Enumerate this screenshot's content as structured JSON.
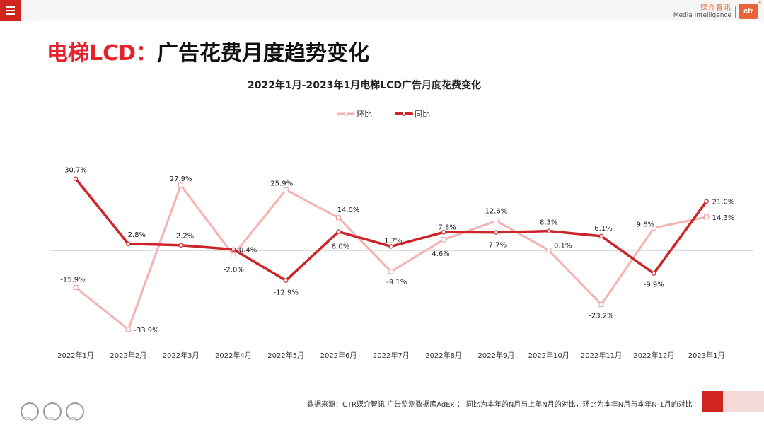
{
  "header": {
    "brand_cn": "媒介智讯",
    "brand_en": "Media Intelligence",
    "brand_logo": "ctr",
    "brand_color": "#e8623a",
    "accent_color": "#d0251f"
  },
  "page": {
    "title_accent": "电梯LCD：",
    "title_main": "广告花费月度趋势变化"
  },
  "footer": {
    "note": "数据来源：CTR媒介智讯 广告监测数据库AdEx ； 同比为本年的N月与上年N月的对比，环比为本年N月与本年N-1月的对比",
    "badge_text": "SGS"
  },
  "chart_data": {
    "type": "line",
    "title": "2022年1月-2023年1月电梯LCD广告月度花费变化",
    "categories": [
      "2022年1月",
      "2022年2月",
      "2022年3月",
      "2022年4月",
      "2022年5月",
      "2022年6月",
      "2022年7月",
      "2022年8月",
      "2022年9月",
      "2022年10月",
      "2022年11月",
      "2022年12月",
      "2023年1月"
    ],
    "series": [
      {
        "name": "环比",
        "color": "#f4b3b1",
        "values": [
          -15.9,
          -33.9,
          27.9,
          -2.0,
          25.9,
          14.0,
          -9.1,
          4.6,
          12.6,
          0.1,
          -23.2,
          9.6,
          14.3
        ],
        "labels": [
          "-15.9%",
          "-33.9%",
          "27.9%",
          "-2.0%",
          "25.9%",
          "14.0%",
          "-9.1%",
          "4.6%",
          "12.6%",
          "0.1%",
          "-23.2%",
          "9.6%",
          "14.3%"
        ]
      },
      {
        "name": "同比",
        "color": "#cc2529",
        "values": [
          30.7,
          2.8,
          2.2,
          0.4,
          -12.9,
          8.0,
          1.7,
          7.8,
          7.7,
          8.3,
          6.1,
          -9.9,
          21.0
        ],
        "labels": [
          "30.7%",
          "2.8%",
          "2.2%",
          "0.4%",
          "-12.9%",
          "8.0%",
          "1.7%",
          "7.8%",
          "7.7%",
          "8.3%",
          "6.1%",
          "-9.9%",
          "21.0%"
        ]
      }
    ],
    "legend_position": "top-center",
    "grid": false,
    "zero_line": true
  }
}
